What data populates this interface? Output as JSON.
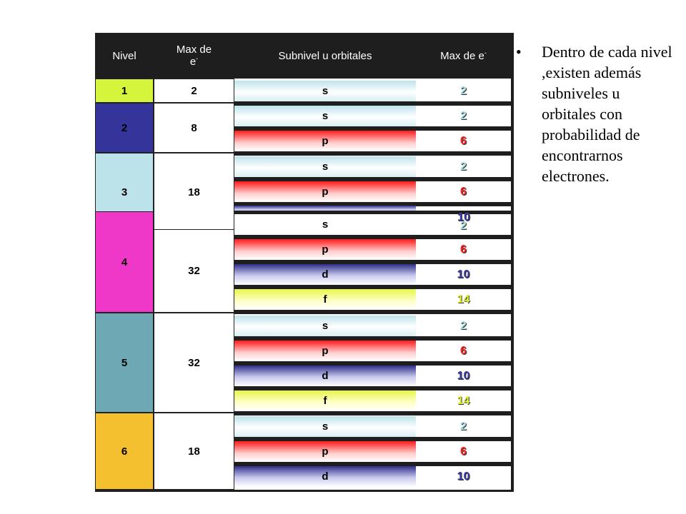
{
  "header": {
    "nivel": "Nivel",
    "max_de": "Max de",
    "e": "e",
    "minus": "-",
    "subnivel": "Subnivel u orbitales",
    "max_de_e": "Max de e"
  },
  "levels": [
    {
      "level": "1",
      "max": "2",
      "color": "#d4f53c"
    },
    {
      "level": "2",
      "max": "8",
      "color": "#35349a"
    },
    {
      "level": "3",
      "max": "18",
      "color": "#bde3ea"
    },
    {
      "level": "4",
      "max": "32",
      "color": "#f038c8"
    },
    {
      "level": "5",
      "max": "32",
      "color": "#6ea8b4"
    },
    {
      "level": "6",
      "max": "18",
      "color": "#f5c030"
    }
  ],
  "rows": [
    {
      "sub": "s",
      "max": "2"
    },
    {
      "sub": "s",
      "max": "2"
    },
    {
      "sub": "p",
      "max": "6"
    },
    {
      "sub": "s",
      "max": "2"
    },
    {
      "sub": "p",
      "max": "6"
    },
    {
      "sub": "s",
      "max": "2",
      "overlap": "10"
    },
    {
      "sub": "p",
      "max": "6"
    },
    {
      "sub": "d",
      "max": "10"
    },
    {
      "sub": "f",
      "max": "14"
    },
    {
      "sub": "s",
      "max": "2"
    },
    {
      "sub": "p",
      "max": "6"
    },
    {
      "sub": "d",
      "max": "10"
    },
    {
      "sub": "f",
      "max": "14"
    },
    {
      "sub": "s",
      "max": "2"
    },
    {
      "sub": "p",
      "max": "6"
    },
    {
      "sub": "d",
      "max": "10"
    }
  ],
  "bullet": "Dentro de cada nivel ,existen además subniveles u orbitales con probabilidad de encontrarnos electrones."
}
